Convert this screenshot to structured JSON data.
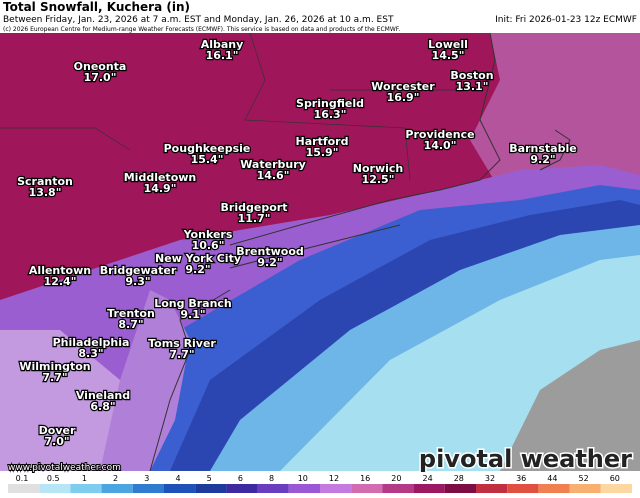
{
  "header": {
    "title": "Total Snowfall, Kuchera (in)",
    "subtitle": "Between Friday, Jan. 23, 2026 at 7 a.m. EST and Monday, Jan. 26, 2026 at 10 a.m. EST",
    "init": "Init: Fri 2026-01-23 12z ECMWF",
    "copyright": "(c) 2026 European Centre for Medium-range Weather Forecasts (ECMWF). This service is based on data and products of the ECMWF."
  },
  "cities": [
    {
      "name": "Oneonta",
      "value": "17.0\""
    },
    {
      "name": "Albany",
      "value": "16.1\""
    },
    {
      "name": "Lowell",
      "value": "14.5\""
    },
    {
      "name": "Boston",
      "value": "13.1\""
    },
    {
      "name": "Worcester",
      "value": "16.9\""
    },
    {
      "name": "Springfield",
      "value": "16.3\""
    },
    {
      "name": "Hartford",
      "value": "15.9\""
    },
    {
      "name": "Providence",
      "value": "14.0\""
    },
    {
      "name": "Poughkeepsie",
      "value": "15.4\""
    },
    {
      "name": "Waterbury",
      "value": "14.6\""
    },
    {
      "name": "Norwich",
      "value": "12.5\""
    },
    {
      "name": "Barnstable",
      "value": "9.2\""
    },
    {
      "name": "Middletown",
      "value": "14.9\""
    },
    {
      "name": "Scranton",
      "value": "13.8\""
    },
    {
      "name": "Bridgeport",
      "value": "11.7\""
    },
    {
      "name": "Yonkers",
      "value": "10.6\""
    },
    {
      "name": "New York City",
      "value": "9.2\""
    },
    {
      "name": "Brentwood",
      "value": "9.2\""
    },
    {
      "name": "Allentown",
      "value": "12.4\""
    },
    {
      "name": "Bridgewater",
      "value": "9.3\""
    },
    {
      "name": "Long Branch",
      "value": "9.1\""
    },
    {
      "name": "Trenton",
      "value": "8.7\""
    },
    {
      "name": "Philadelphia",
      "value": "8.3\""
    },
    {
      "name": "Toms River",
      "value": "7.7\""
    },
    {
      "name": "Wilmington",
      "value": "7.7\""
    },
    {
      "name": "Vineland",
      "value": "6.8\""
    },
    {
      "name": "Dover",
      "value": "7.0\""
    }
  ],
  "colorbar": {
    "ticks": [
      "0.1",
      "0.5",
      "1",
      "2",
      "3",
      "4",
      "5",
      "6",
      "8",
      "10",
      "12",
      "16",
      "20",
      "24",
      "28",
      "32",
      "36",
      "44",
      "52",
      "60"
    ]
  },
  "watermark": {
    "url": "www.pivotalweather.com",
    "brand": "pivotal weather"
  }
}
